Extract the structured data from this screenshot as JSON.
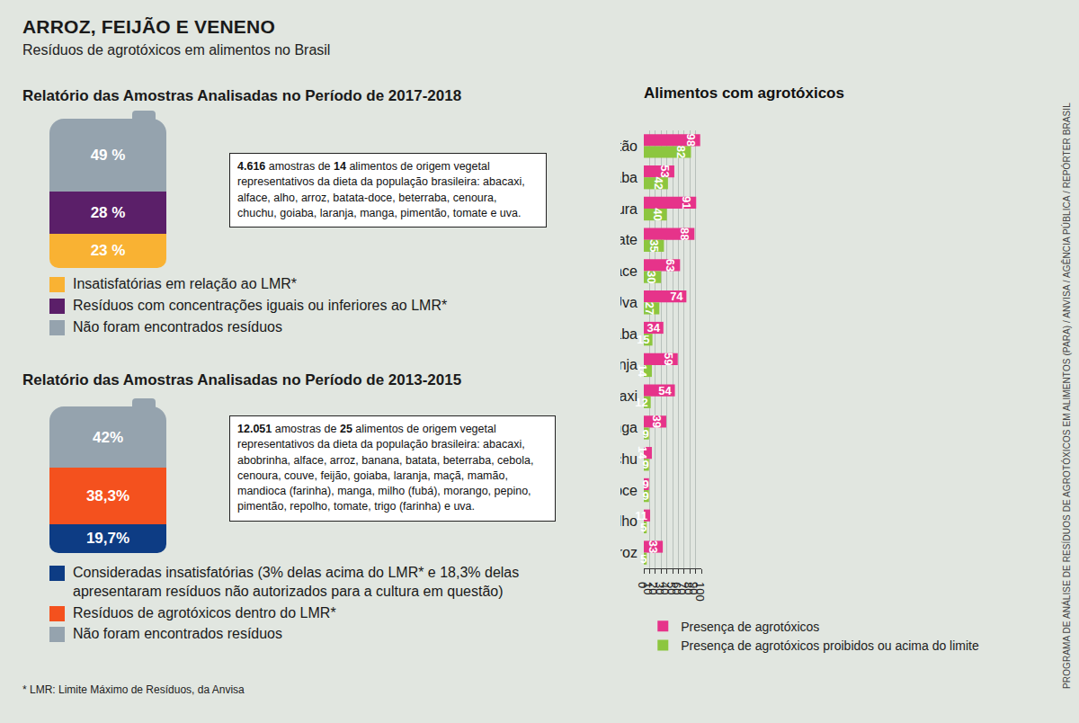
{
  "title": "ARROZ, FEIJÃO E VENENO",
  "subtitle": "Resíduos de agrotóxicos em alimentos no Brasil",
  "footnote": "* LMR: Limite Máximo de Resíduos, da Anvisa",
  "source": "PROGRAMA DE ANÁLISE DE RESÍDUOS DE AGROTÓXICOS EM ALIMENTOS (PARA) / ANVISA / AGÊNCIA PÚBLICA / REPÓRTER BRASIL",
  "chart_data": [
    {
      "type": "bar",
      "title": "Relatório das Amostras Analisadas no Período de 2017-2018",
      "description": "4.616 amostras de 14 alimentos de origem vegetal representativos da dieta da população brasileira: abacaxi, alface, alho, arroz, batata-doce, beterraba, cenoura, chuchu, goiaba, laranja, manga, pimentão, tomate e uva.",
      "stacked": true,
      "categories": [
        null
      ],
      "series": [
        {
          "name": "Insatisfatórias em relação ao LMR*",
          "color": "#f9b233",
          "values": [
            23
          ],
          "value_labels": [
            "23 %"
          ]
        },
        {
          "name": "Resíduos com concentrações iguais ou inferiores ao LMR*",
          "color": "#5b1f69",
          "values": [
            28
          ],
          "value_labels": [
            "28 %"
          ]
        },
        {
          "name": "Não foram encontrados resíduos",
          "color": "#95a3ae",
          "values": [
            49
          ],
          "value_labels": [
            "49 %"
          ]
        }
      ],
      "ylim": [
        0,
        100
      ],
      "tick_labels": false,
      "data_labels": true,
      "legend": "bottom"
    },
    {
      "type": "bar",
      "title": "Relatório das Amostras Analisadas no Período de 2013-2015",
      "description": "12.051 amostras de 25 alimentos de origem vegetal representativos da dieta da população brasileira: abacaxi, abobrinha, alface, arroz, banana, batata, beterraba, cebola, cenoura, couve, feijão, goiaba, laranja, maçã, mamão, mandioca (farinha), manga, milho (fubá), morango, pepino, pimentão, repolho, tomate, trigo (farinha) e uva.",
      "stacked": true,
      "categories": [
        null
      ],
      "series": [
        {
          "name": "Consideradas insatisfatórias (3% delas acima do LMR* e 18,3% delas apresentaram resíduos não autorizados para a cultura em questão)",
          "color": "#0d3c84",
          "values": [
            19.7
          ],
          "value_labels": [
            "19,7%"
          ]
        },
        {
          "name": "Resíduos de agrotóxicos dentro do LMR*",
          "color": "#f4511e",
          "values": [
            38.3
          ],
          "value_labels": [
            "38,3%"
          ]
        },
        {
          "name": "Não foram encontrados resíduos",
          "color": "#95a3ae",
          "values": [
            42
          ],
          "value_labels": [
            "42%"
          ]
        }
      ],
      "ylim": [
        0,
        100
      ],
      "tick_labels": false,
      "data_labels": true,
      "legend": "bottom"
    },
    {
      "type": "bar",
      "title": "Alimentos com agrotóxicos",
      "orientation": "horizontal",
      "categories": [
        "Pimentão",
        "Goiaba",
        "Cenoura",
        "Tomate",
        "Alface",
        "Uva",
        "Beterraba",
        "Laranja",
        "Abacaxi",
        "Manga",
        "Chuchu",
        "Batata doce",
        "Alho",
        "Arroz"
      ],
      "series": [
        {
          "name": "Presença de agrotóxicos",
          "color": "#e6338a",
          "values": [
            98,
            53,
            91,
            88,
            63,
            74,
            34,
            59,
            54,
            39,
            14,
            9,
            11,
            33
          ]
        },
        {
          "name": "Presença de agrotóxicos proibidos ou acima do limite",
          "color": "#8cc63f",
          "values": [
            82,
            42,
            40,
            35,
            30,
            27,
            15,
            14,
            12,
            9,
            9,
            9,
            5,
            5
          ]
        }
      ],
      "xlim": [
        0,
        100
      ],
      "xticks": [
        0,
        10,
        20,
        30,
        40,
        50,
        60,
        70,
        80,
        90,
        100
      ],
      "grid": true,
      "data_labels": true,
      "legend": "bottom"
    }
  ]
}
